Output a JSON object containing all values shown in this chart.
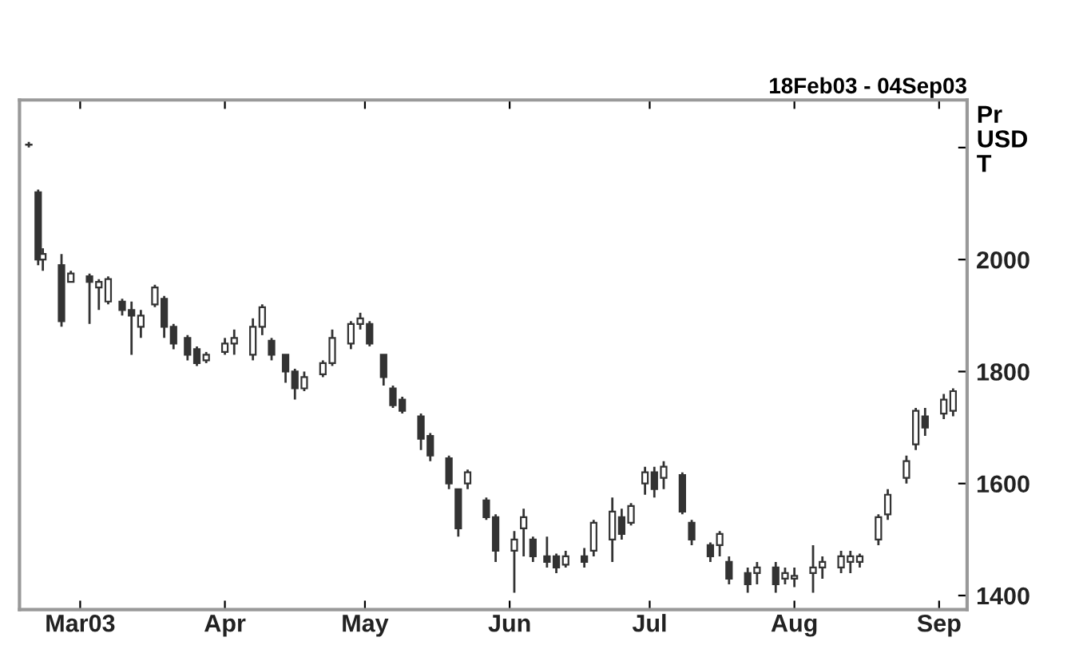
{
  "chart_data": {
    "type": "candlestick",
    "title": "18Feb03 - 04Sep03",
    "ylabel": "Pr\nUSD\nT",
    "color": "#333333",
    "x": [
      "2003-02-18",
      "2003-02-20",
      "2003-02-21",
      "2003-02-25",
      "2003-02-27",
      "2003-03-03",
      "2003-03-05",
      "2003-03-07",
      "2003-03-10",
      "2003-03-12",
      "2003-03-14",
      "2003-03-17",
      "2003-03-19",
      "2003-03-21",
      "2003-03-24",
      "2003-03-26",
      "2003-03-28",
      "2003-04-01",
      "2003-04-03",
      "2003-04-07",
      "2003-04-09",
      "2003-04-11",
      "2003-04-14",
      "2003-04-16",
      "2003-04-18",
      "2003-04-22",
      "2003-04-24",
      "2003-04-28",
      "2003-04-30",
      "2003-05-02",
      "2003-05-05",
      "2003-05-07",
      "2003-05-09",
      "2003-05-13",
      "2003-05-15",
      "2003-05-19",
      "2003-05-21",
      "2003-05-23",
      "2003-05-27",
      "2003-05-29",
      "2003-06-02",
      "2003-06-04",
      "2003-06-06",
      "2003-06-09",
      "2003-06-11",
      "2003-06-13",
      "2003-06-17",
      "2003-06-19",
      "2003-06-23",
      "2003-06-25",
      "2003-06-27",
      "2003-06-30",
      "2003-07-02",
      "2003-07-04",
      "2003-07-08",
      "2003-07-10",
      "2003-07-14",
      "2003-07-16",
      "2003-07-18",
      "2003-07-22",
      "2003-07-24",
      "2003-07-28",
      "2003-07-30",
      "2003-08-01",
      "2003-08-05",
      "2003-08-07",
      "2003-08-11",
      "2003-08-13",
      "2003-08-15",
      "2003-08-19",
      "2003-08-21",
      "2003-08-25",
      "2003-08-27",
      "2003-08-29",
      "2003-09-02",
      "2003-09-04"
    ],
    "ohlc": [
      [
        2205,
        2210,
        2200,
        2205
      ],
      [
        2120,
        2125,
        1990,
        2000
      ],
      [
        2000,
        2020,
        1980,
        2010
      ],
      [
        1990,
        2010,
        1880,
        1890
      ],
      [
        1960,
        1980,
        1960,
        1975
      ],
      [
        1970,
        1975,
        1885,
        1960
      ],
      [
        1950,
        1965,
        1910,
        1960
      ],
      [
        1925,
        1970,
        1920,
        1965
      ],
      [
        1925,
        1930,
        1900,
        1910
      ],
      [
        1910,
        1925,
        1830,
        1900
      ],
      [
        1880,
        1910,
        1860,
        1900
      ],
      [
        1920,
        1955,
        1915,
        1950
      ],
      [
        1930,
        1935,
        1860,
        1880
      ],
      [
        1880,
        1885,
        1840,
        1850
      ],
      [
        1860,
        1865,
        1820,
        1830
      ],
      [
        1840,
        1845,
        1810,
        1815
      ],
      [
        1820,
        1835,
        1815,
        1830
      ],
      [
        1835,
        1860,
        1830,
        1850
      ],
      [
        1850,
        1875,
        1830,
        1860
      ],
      [
        1830,
        1895,
        1820,
        1880
      ],
      [
        1880,
        1920,
        1865,
        1915
      ],
      [
        1855,
        1860,
        1820,
        1830
      ],
      [
        1830,
        1830,
        1780,
        1800
      ],
      [
        1800,
        1805,
        1750,
        1770
      ],
      [
        1770,
        1800,
        1765,
        1790
      ],
      [
        1795,
        1820,
        1790,
        1815
      ],
      [
        1815,
        1875,
        1810,
        1860
      ],
      [
        1850,
        1890,
        1840,
        1885
      ],
      [
        1885,
        1905,
        1875,
        1895
      ],
      [
        1885,
        1890,
        1845,
        1850
      ],
      [
        1830,
        1830,
        1775,
        1790
      ],
      [
        1770,
        1775,
        1735,
        1740
      ],
      [
        1750,
        1755,
        1725,
        1730
      ],
      [
        1720,
        1725,
        1660,
        1680
      ],
      [
        1685,
        1690,
        1640,
        1650
      ],
      [
        1645,
        1650,
        1590,
        1600
      ],
      [
        1590,
        1590,
        1505,
        1520
      ],
      [
        1600,
        1625,
        1590,
        1620
      ],
      [
        1570,
        1575,
        1535,
        1540
      ],
      [
        1540,
        1545,
        1460,
        1480
      ],
      [
        1480,
        1515,
        1405,
        1500
      ],
      [
        1520,
        1555,
        1470,
        1540
      ],
      [
        1500,
        1505,
        1460,
        1470
      ],
      [
        1470,
        1505,
        1450,
        1460
      ],
      [
        1470,
        1475,
        1440,
        1450
      ],
      [
        1455,
        1480,
        1450,
        1470
      ],
      [
        1470,
        1485,
        1450,
        1460
      ],
      [
        1480,
        1535,
        1470,
        1530
      ],
      [
        1500,
        1575,
        1460,
        1550
      ],
      [
        1540,
        1555,
        1500,
        1510
      ],
      [
        1530,
        1565,
        1525,
        1560
      ],
      [
        1600,
        1630,
        1580,
        1620
      ],
      [
        1620,
        1630,
        1575,
        1590
      ],
      [
        1610,
        1640,
        1590,
        1630
      ],
      [
        1615,
        1620,
        1545,
        1550
      ],
      [
        1530,
        1535,
        1490,
        1500
      ],
      [
        1490,
        1495,
        1460,
        1470
      ],
      [
        1490,
        1515,
        1470,
        1510
      ],
      [
        1460,
        1470,
        1420,
        1430
      ],
      [
        1440,
        1450,
        1405,
        1420
      ],
      [
        1440,
        1460,
        1420,
        1450
      ],
      [
        1450,
        1460,
        1405,
        1420
      ],
      [
        1430,
        1450,
        1420,
        1440
      ],
      [
        1430,
        1450,
        1415,
        1435
      ],
      [
        1440,
        1490,
        1405,
        1450
      ],
      [
        1450,
        1470,
        1430,
        1460
      ],
      [
        1450,
        1480,
        1440,
        1470
      ],
      [
        1460,
        1480,
        1440,
        1470
      ],
      [
        1460,
        1475,
        1450,
        1470
      ],
      [
        1500,
        1545,
        1490,
        1540
      ],
      [
        1545,
        1590,
        1535,
        1580
      ],
      [
        1610,
        1650,
        1600,
        1640
      ],
      [
        1670,
        1735,
        1660,
        1730
      ],
      [
        1720,
        1735,
        1685,
        1700
      ],
      [
        1725,
        1760,
        1715,
        1750
      ],
      [
        1730,
        1770,
        1720,
        1765
      ]
    ],
    "xlim": [
      "2003-02-16",
      "2003-09-07"
    ],
    "xticks": [
      {
        "value": "2003-03-01",
        "label": "Mar03"
      },
      {
        "value": "2003-04-01",
        "label": "Apr"
      },
      {
        "value": "2003-05-01",
        "label": "May"
      },
      {
        "value": "2003-06-01",
        "label": "Jun"
      },
      {
        "value": "2003-07-01",
        "label": "Jul"
      },
      {
        "value": "2003-08-01",
        "label": "Aug"
      },
      {
        "value": "2003-09-01",
        "label": "Sep"
      }
    ],
    "ylim": [
      1375,
      2285
    ],
    "yticks": [
      1400,
      1600,
      1800,
      2000,
      {
        "value": 2200,
        "label": null
      }
    ]
  }
}
